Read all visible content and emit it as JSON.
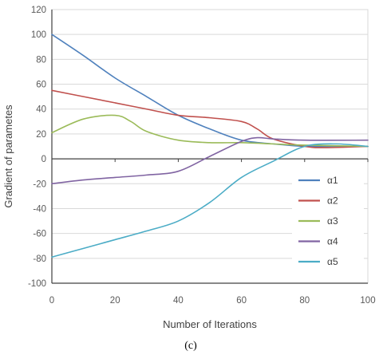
{
  "caption": "(c)",
  "chart_data": {
    "type": "line",
    "title": "",
    "xlabel": "Number of Iterations",
    "ylabel": "Gradient of parametes",
    "xlim": [
      0,
      100
    ],
    "ylim": [
      -100,
      120
    ],
    "xticks": [
      0,
      20,
      40,
      60,
      80,
      100
    ],
    "yticks": [
      -100,
      -80,
      -60,
      -40,
      -20,
      0,
      20,
      40,
      60,
      80,
      100,
      120
    ],
    "grid": "horizontal",
    "legend_position": "right",
    "series": [
      {
        "name": "α1",
        "color": "#4f81bd",
        "x": [
          0,
          10,
          20,
          30,
          40,
          50,
          60,
          70,
          80,
          90,
          100
        ],
        "y": [
          100,
          83,
          65,
          50,
          35,
          24,
          15,
          12,
          10,
          10,
          10
        ]
      },
      {
        "name": "α2",
        "color": "#c0504d",
        "x": [
          0,
          10,
          20,
          30,
          40,
          50,
          60,
          65,
          70,
          80,
          87,
          100
        ],
        "y": [
          55,
          50,
          45,
          40,
          35,
          33,
          30,
          24,
          16,
          10,
          9,
          10
        ]
      },
      {
        "name": "α3",
        "color": "#9bbb59",
        "x": [
          0,
          10,
          20,
          25,
          30,
          40,
          50,
          60,
          70,
          80,
          100
        ],
        "y": [
          21,
          32,
          35,
          30,
          22,
          15,
          13,
          13,
          12,
          11,
          10
        ]
      },
      {
        "name": "α4",
        "color": "#8064a2",
        "x": [
          0,
          10,
          20,
          30,
          40,
          50,
          60,
          65,
          70,
          80,
          100
        ],
        "y": [
          -20,
          -17,
          -15,
          -13,
          -10,
          2,
          14,
          17,
          16,
          15,
          15
        ]
      },
      {
        "name": "α5",
        "color": "#4bacc6",
        "x": [
          0,
          10,
          20,
          30,
          40,
          50,
          60,
          70,
          80,
          90,
          100
        ],
        "y": [
          -79,
          -72,
          -65,
          -58,
          -50,
          -35,
          -15,
          -2,
          10,
          12,
          10
        ]
      }
    ]
  }
}
